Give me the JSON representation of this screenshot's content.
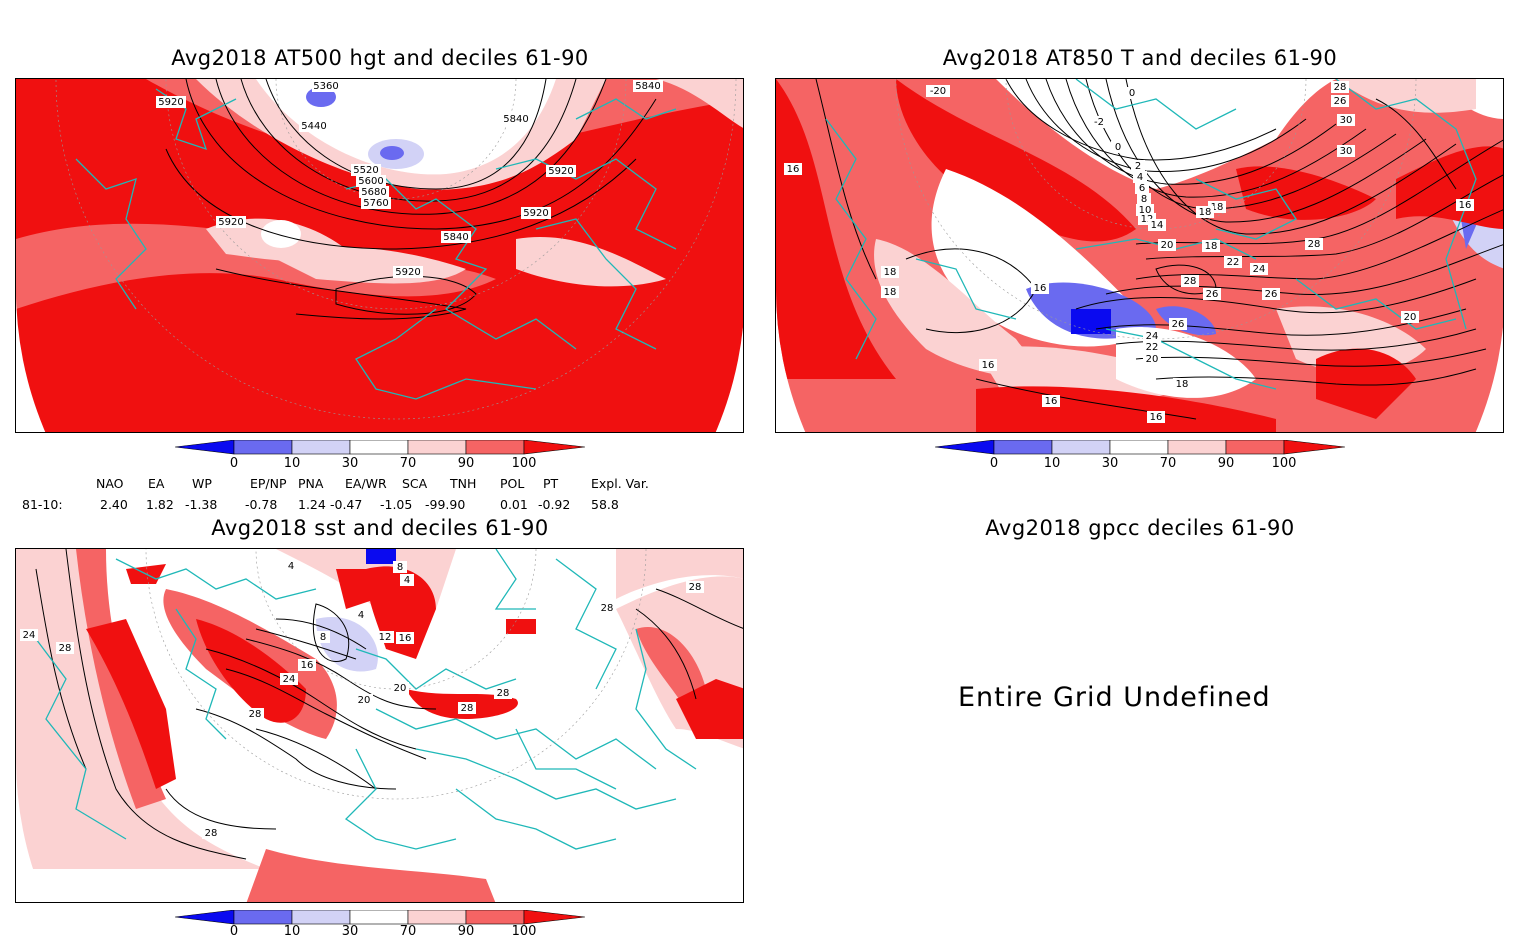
{
  "panels": {
    "hgt": {
      "title": "Avg2018 AT500 hgt and deciles 61-90",
      "contour_labels": [
        "5360",
        "5920",
        "5440",
        "5520",
        "5600",
        "5680",
        "5760",
        "5840",
        "5920",
        "5920",
        "5920",
        "5840",
        "5920",
        "5840"
      ]
    },
    "t850": {
      "title": "Avg2018 AT850 T and deciles 61-90",
      "contour_labels": [
        "-20",
        "0",
        "-2",
        "0",
        "2",
        "4",
        "6",
        "8",
        "10",
        "12",
        "14",
        "18",
        "20",
        "18",
        "22",
        "24",
        "28",
        "26",
        "26",
        "26",
        "24",
        "22",
        "20",
        "18",
        "16",
        "16",
        "16",
        "16",
        "18",
        "18",
        "20",
        "28",
        "30",
        "30",
        "26",
        "28",
        "16",
        "16",
        "18"
      ]
    },
    "sst": {
      "title": "Avg2018 sst and deciles 61-90",
      "contour_labels": [
        "4",
        "8",
        "4",
        "24",
        "28",
        "28",
        "4",
        "8",
        "12",
        "16",
        "16",
        "20",
        "24",
        "28",
        "20",
        "28",
        "28",
        "28",
        "28"
      ]
    },
    "gpcc": {
      "title": "Avg2018 gpcc deciles 61-90",
      "message": "Entire Grid Undefined"
    }
  },
  "colorbar": {
    "ticks": [
      "0",
      "10",
      "30",
      "70",
      "90",
      "100"
    ],
    "colors": [
      "#0a0af0",
      "#6a6af0",
      "#d2d2f6",
      "#ffffff",
      "#fbd2d2",
      "#f56464",
      "#f01010"
    ]
  },
  "indices": {
    "row_label": "81-10:",
    "headers": [
      "NAO",
      "EA",
      "WP",
      "EP/NP",
      "PNA",
      "EA/WR",
      "SCA",
      "TNH",
      "POL",
      "PT",
      "Expl. Var."
    ],
    "values": [
      "2.40",
      "1.82",
      "-1.38",
      "-0.78",
      "1.24",
      "-0.47",
      "-1.05",
      "-99.90",
      "0.01",
      "-0.92",
      "58.8"
    ]
  },
  "legend_colors": {
    "contour": "#000000",
    "coast": "#1fb8b8",
    "strong_pos": "#f01010",
    "pos": "#f56464",
    "weak_pos": "#fbd2d2",
    "weak_neg": "#d2d2f6",
    "neg": "#6a6af0",
    "strong_neg": "#0a0af0"
  }
}
